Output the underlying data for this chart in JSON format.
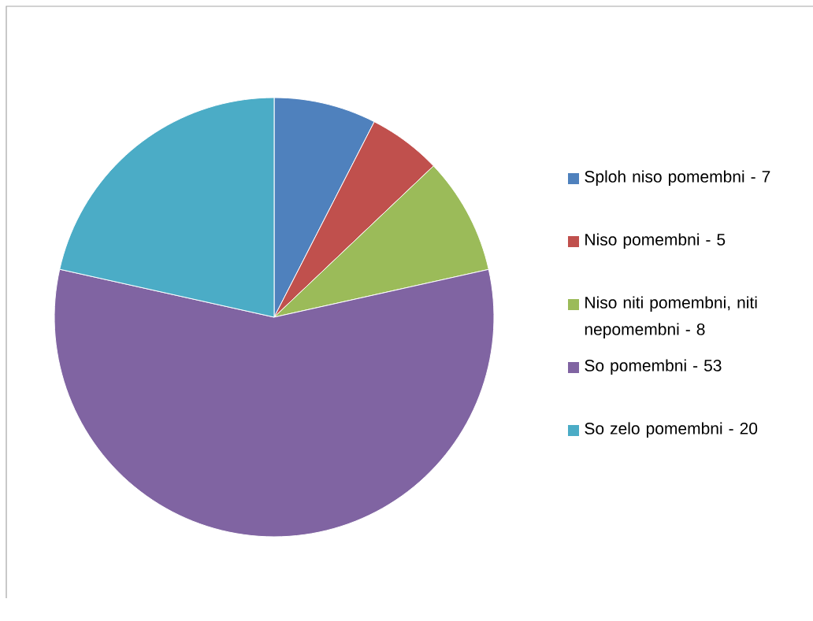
{
  "chart_data": {
    "type": "pie",
    "categories": [
      "Sploh niso pomembni  - 7",
      "Niso pomembni - 5",
      "Niso niti pomembni, niti nepomembni - 8",
      "So pomembni - 53",
      "So zelo pomembni  - 20"
    ],
    "values": [
      7.53,
      5.38,
      8.6,
      56.99,
      21.5
    ],
    "colors": [
      "#4f81bd",
      "#c0504d",
      "#9bbb59",
      "#8064a2",
      "#4bacc6"
    ],
    "legend": "right"
  }
}
